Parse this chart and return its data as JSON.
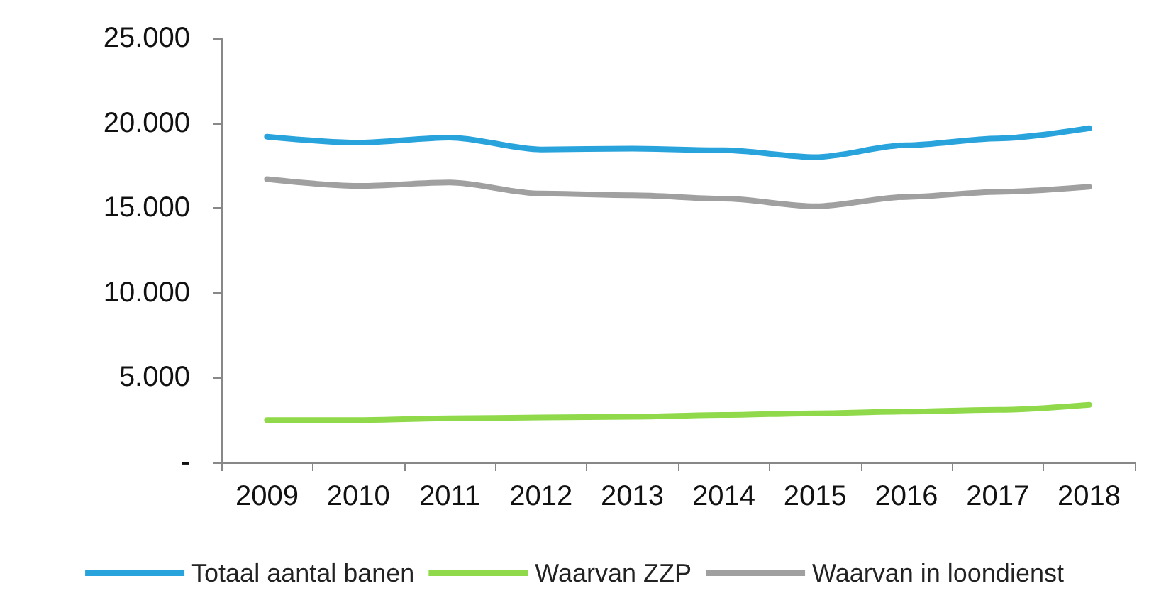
{
  "chart_data": {
    "type": "line",
    "categories": [
      "2009",
      "2010",
      "2011",
      "2012",
      "2013",
      "2014",
      "2015",
      "2016",
      "2017",
      "2018"
    ],
    "series": [
      {
        "name": "Totaal aantal banen",
        "color": "#29a3dc",
        "values": [
          19200,
          18850,
          19150,
          18450,
          18500,
          18400,
          18000,
          18700,
          19100,
          19700
        ]
      },
      {
        "name": "Waarvan ZZP",
        "color": "#8fd94a",
        "values": [
          2500,
          2500,
          2600,
          2650,
          2700,
          2800,
          2900,
          3000,
          3100,
          3400
        ]
      },
      {
        "name": "Waarvan in loondienst",
        "color": "#a0a0a0",
        "values": [
          16700,
          16300,
          16500,
          15850,
          15750,
          15550,
          15100,
          15650,
          15950,
          16250
        ]
      }
    ],
    "ylim": [
      0,
      25000
    ],
    "yticks": [
      {
        "value": 0,
        "label": "-"
      },
      {
        "value": 5000,
        "label": "5.000"
      },
      {
        "value": 10000,
        "label": "10.000"
      },
      {
        "value": 15000,
        "label": "15.000"
      },
      {
        "value": 20000,
        "label": "20.000"
      },
      {
        "value": 25000,
        "label": "25.000"
      }
    ],
    "grid": false,
    "legend": "bottom",
    "marker": "none",
    "line_style": "solid"
  }
}
